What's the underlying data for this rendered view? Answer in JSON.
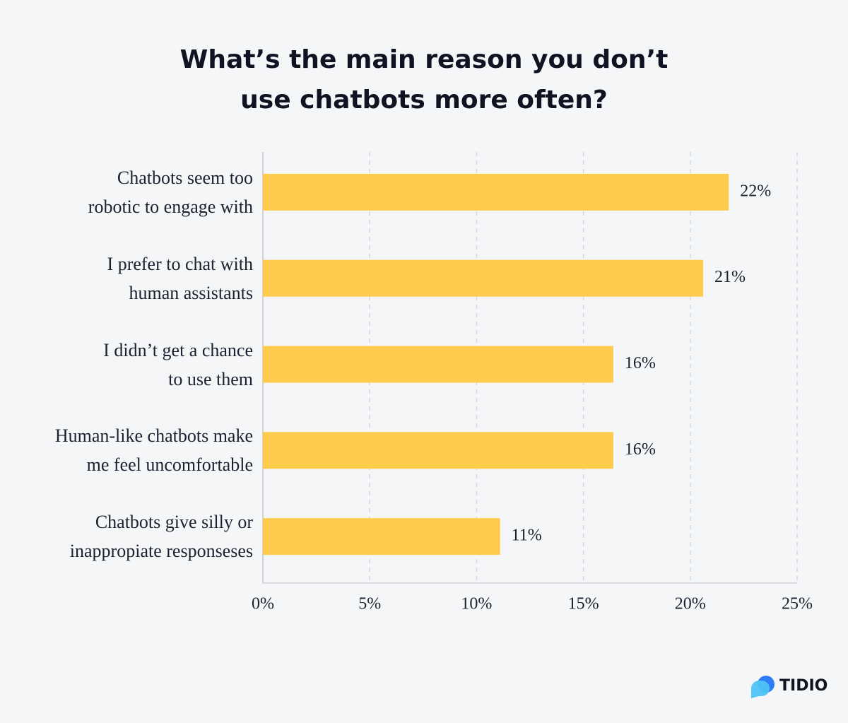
{
  "chart_data": {
    "type": "hbar",
    "title": "What’s the main reason you don’t\nuse chatbots more often?",
    "categories": [
      "Chatbots seem too\nrobotic to engage with",
      "I prefer to chat with\nhuman assistants",
      "I didn’t get a chance\nto use them",
      "Human-like chatbots make\nme feel uncomfortable",
      "Chatbots give silly or\ninappropiate responseses"
    ],
    "values": [
      21.8,
      20.6,
      16.4,
      16.4,
      11.1
    ],
    "value_labels": [
      "22%",
      "21%",
      "16%",
      "16%",
      "11%"
    ],
    "color": "#ffcb4c",
    "xlim": [
      0,
      25
    ],
    "xticks": [
      {
        "value": 0,
        "label": "0%"
      },
      {
        "value": 5,
        "label": "5%"
      },
      {
        "value": 10,
        "label": "10%"
      },
      {
        "value": 15,
        "label": "15%"
      },
      {
        "value": 20,
        "label": "20%"
      },
      {
        "value": 25,
        "label": "25%"
      }
    ],
    "grid": true
  },
  "logo": "TIDIO"
}
